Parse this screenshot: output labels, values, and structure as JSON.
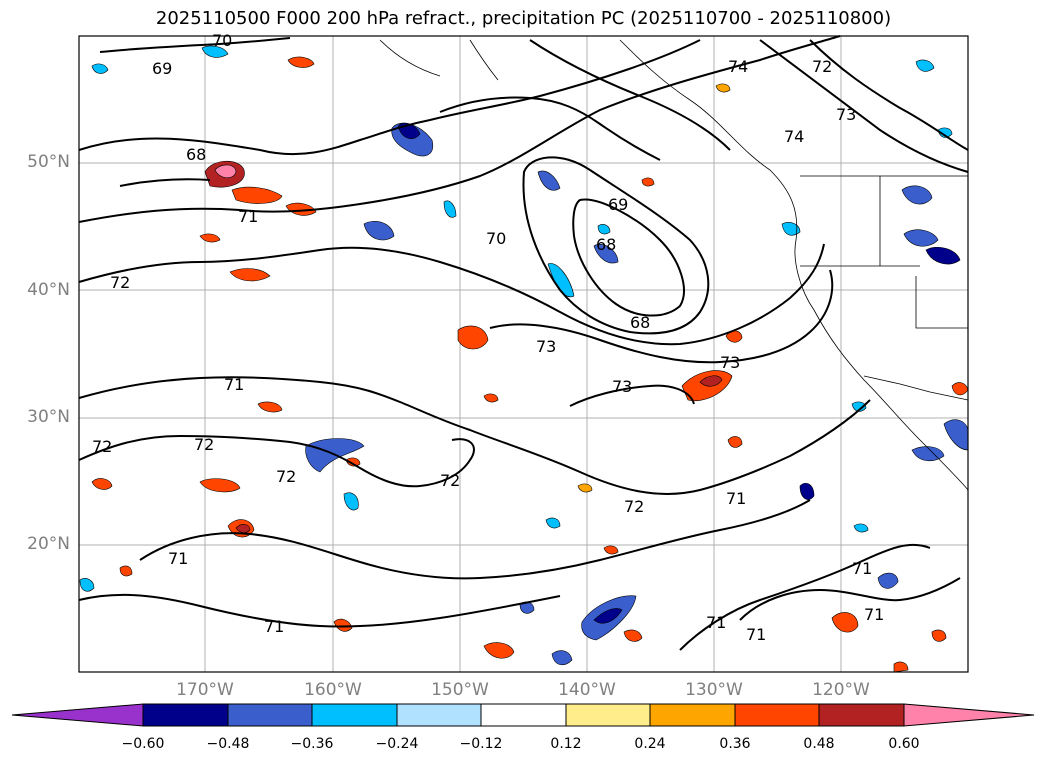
{
  "title": "2025110500 F000 200 hPa refract., precipitation PC (2025110700 - 2025110800)",
  "map": {
    "lon_range": [
      -180,
      -110
    ],
    "lat_range": [
      10,
      60
    ],
    "lat_labels": [
      "50°N",
      "40°N",
      "30°N",
      "20°N"
    ],
    "lon_labels": [
      "170°W",
      "160°W",
      "150°W",
      "140°W",
      "130°W",
      "120°W"
    ],
    "contour_labels": [
      "70",
      "69",
      "68",
      "71",
      "72",
      "72",
      "72",
      "72",
      "71",
      "71",
      "71",
      "69",
      "68",
      "70",
      "68",
      "73",
      "73",
      "73",
      "72",
      "71",
      "72",
      "71",
      "71",
      "71",
      "71",
      "74",
      "72",
      "73",
      "74"
    ]
  },
  "colorbar": {
    "ticks": [
      "−0.60",
      "−0.48",
      "−0.36",
      "−0.24",
      "−0.12",
      "0.12",
      "0.24",
      "0.36",
      "0.48",
      "0.60"
    ],
    "colors": [
      "#9932cc",
      "#00008b",
      "#3a5fcd",
      "#00bfff",
      "#b0e2ff",
      "#ffffff",
      "#ffec8b",
      "#ffa500",
      "#ff4500",
      "#b22222",
      "#ff82ab"
    ]
  }
}
